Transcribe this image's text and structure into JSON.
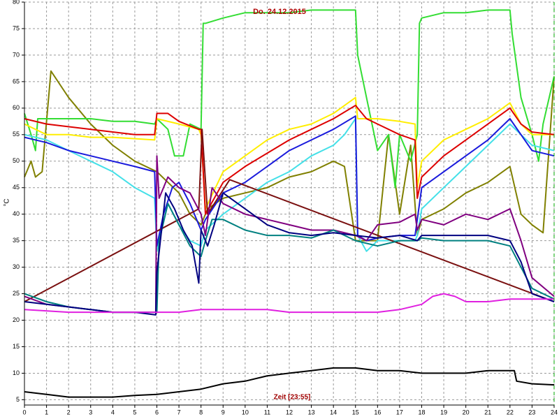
{
  "chart_data": {
    "type": "line",
    "title": "Do. 24.12.2015",
    "x_label": "Zeit [23:55]",
    "y_label": "°C",
    "xlim": [
      0,
      24
    ],
    "xticks": [
      0,
      1,
      2,
      3,
      4,
      5,
      6,
      7,
      8,
      9,
      10,
      11,
      12,
      13,
      14,
      15,
      16,
      17,
      18,
      19,
      20,
      21,
      22,
      23,
      24
    ],
    "ylim": [
      4,
      80
    ],
    "yticks": [
      5,
      10,
      15,
      20,
      25,
      30,
      35,
      40,
      45,
      50,
      55,
      60,
      65,
      70,
      75,
      80
    ],
    "grid": true,
    "series": [
      {
        "color": "#808000",
        "x": [
          0,
          0.3,
          0.5,
          0.8,
          1.2,
          2,
          3,
          4,
          5,
          6,
          6.5,
          7,
          7.5,
          8,
          8.3,
          9,
          10,
          11,
          12,
          13,
          14,
          14.5,
          15,
          16,
          16.5,
          17,
          17.5,
          17.8,
          18,
          19,
          20,
          21,
          22,
          22.5,
          23,
          23.5,
          24
        ],
        "values": [
          47,
          50,
          47,
          48,
          67,
          62,
          57,
          53,
          50,
          48,
          46,
          44,
          40,
          38,
          41,
          43,
          44,
          45,
          47,
          48,
          50,
          49,
          35,
          35,
          55,
          40,
          53,
          36,
          39,
          41,
          44,
          46,
          49,
          40,
          38,
          36.5,
          66
        ]
      },
      {
        "color": "#33dd33",
        "x": [
          0,
          0.3,
          0.5,
          0.6,
          1,
          2,
          3,
          4,
          5,
          5.9,
          6,
          6.5,
          6.8,
          7.2,
          7.5,
          8,
          8.1,
          8.2,
          9,
          10,
          11,
          12,
          13,
          14,
          15,
          15.1,
          15.5,
          16,
          16.5,
          16.8,
          17,
          17.5,
          17.8,
          17.9,
          18,
          19,
          20,
          21,
          22,
          22.1,
          22.5,
          23,
          23.3,
          23.5,
          24
        ],
        "values": [
          59,
          55,
          52,
          58,
          58,
          58,
          58,
          57.5,
          57.5,
          57,
          58,
          56,
          51,
          51,
          57,
          56,
          76,
          76,
          77,
          78,
          78,
          78,
          78.5,
          78.5,
          78.5,
          70,
          62,
          52,
          55,
          45,
          55,
          50,
          55,
          76,
          77,
          78,
          78,
          78.5,
          78.5,
          74,
          62,
          55,
          50,
          57,
          66
        ]
      },
      {
        "color": "#ffee00",
        "x": [
          0,
          1,
          2,
          3,
          4,
          5.9,
          6,
          7,
          7.9,
          8,
          8.2,
          9,
          10,
          11,
          12,
          13,
          14,
          15,
          15.1,
          16,
          17,
          17.7,
          17.8,
          18,
          19,
          20,
          21,
          22,
          22.5,
          23,
          24
        ],
        "values": [
          57,
          55,
          55,
          54.5,
          54.5,
          54,
          58,
          57,
          56,
          55,
          41,
          48,
          51,
          54,
          56,
          57,
          59,
          62,
          58,
          58,
          57.5,
          57,
          45,
          50,
          54,
          56,
          58,
          61,
          57,
          55,
          55
        ]
      },
      {
        "color": "#dd0000",
        "x": [
          0,
          1,
          3,
          5,
          5.9,
          6,
          6.5,
          7,
          7.9,
          8,
          8.2,
          9,
          10,
          11,
          12,
          13,
          14,
          15,
          15.5,
          16,
          17,
          17.7,
          17.8,
          18,
          19,
          20,
          21,
          22,
          22.5,
          23,
          24
        ],
        "values": [
          58,
          57,
          56,
          55,
          55,
          59,
          59,
          57.5,
          56,
          56,
          40,
          46,
          49,
          51.5,
          54,
          56,
          58,
          60.5,
          58,
          57,
          55,
          54,
          43,
          47,
          51,
          54,
          57,
          60,
          57,
          55.5,
          55
        ]
      },
      {
        "color": "#44e0e8",
        "x": [
          0,
          1,
          2,
          3,
          4,
          5,
          5.9,
          6,
          6.5,
          7,
          7.5,
          8,
          8.2,
          9,
          10,
          11,
          12,
          13,
          14,
          14.5,
          15,
          15.1,
          15.5,
          16,
          17,
          17.7,
          17.8,
          18,
          19,
          20,
          21,
          22,
          22.5,
          23,
          24
        ],
        "values": [
          55,
          54,
          52,
          50,
          48,
          45,
          43,
          33,
          42,
          38,
          35,
          34,
          37,
          40,
          43,
          46,
          48,
          51,
          53,
          55,
          58,
          36,
          33,
          35,
          35,
          35,
          36,
          41,
          45,
          49,
          53,
          57,
          55,
          53,
          52
        ]
      },
      {
        "color": "#1a1adc",
        "x": [
          0,
          1,
          2,
          3,
          4,
          5,
          5.9,
          6,
          6.3,
          6.7,
          7,
          7.5,
          8,
          8.2,
          9,
          10,
          11,
          12,
          13,
          14,
          15,
          15.1,
          15.5,
          16,
          17,
          17.7,
          17.8,
          18,
          19,
          20,
          21,
          22,
          22.5,
          23,
          24
        ],
        "values": [
          54.5,
          53.5,
          52,
          51,
          50,
          49,
          48,
          34,
          40,
          45,
          46,
          42,
          37,
          39,
          44,
          46,
          49,
          52,
          54,
          56,
          58.5,
          36,
          35,
          35.5,
          36,
          36,
          39,
          45,
          48,
          51,
          54,
          58,
          55,
          52,
          51
        ]
      },
      {
        "color": "#7a1010",
        "x": [
          0,
          7.9,
          8.05,
          8.3,
          9.3,
          24
        ],
        "values": [
          23.5,
          41,
          56,
          40,
          46.5,
          23.5
        ]
      },
      {
        "color": "#800080",
        "x": [
          0,
          1,
          2,
          3,
          4,
          5,
          5.95,
          6,
          6.1,
          6.5,
          7,
          7.5,
          8,
          8.2,
          8.5,
          9,
          10,
          11,
          12,
          13,
          14,
          15,
          15.5,
          16,
          17,
          17.7,
          17.8,
          18,
          19,
          20,
          21,
          22,
          22.5,
          23,
          24
        ],
        "values": [
          24.5,
          23,
          22.5,
          22,
          21.5,
          21.5,
          21.5,
          51,
          43,
          47,
          45,
          44,
          40,
          36,
          45,
          42,
          40,
          39,
          38,
          37,
          37,
          36,
          35,
          38,
          38.5,
          40,
          37,
          39,
          38,
          40,
          39,
          41,
          35,
          28,
          24.5
        ]
      },
      {
        "color": "#008080",
        "x": [
          0,
          1,
          2,
          3,
          4,
          5,
          6,
          6.1,
          6.5,
          7,
          7.5,
          8,
          8.2,
          8.5,
          9,
          10,
          11,
          12,
          13,
          14,
          15,
          16,
          17,
          17.5,
          17.8,
          18,
          19,
          20,
          21,
          22,
          22.5,
          23,
          24
        ],
        "values": [
          25,
          23.5,
          22.5,
          22,
          21.5,
          21.5,
          21.5,
          35,
          42,
          38,
          34,
          32,
          35,
          39,
          39,
          37,
          36,
          36,
          35.5,
          37,
          35,
          34,
          35,
          35,
          35,
          35.5,
          35,
          35,
          35,
          34,
          30,
          26,
          24
        ]
      },
      {
        "color": "#000080",
        "x": [
          0,
          1,
          2,
          3,
          4,
          5,
          5.95,
          6,
          6.4,
          6.8,
          7.2,
          7.6,
          7.9,
          8,
          8.3,
          8.6,
          9,
          10,
          11,
          12,
          13,
          14,
          15,
          16,
          17,
          17.8,
          18,
          19,
          20,
          21,
          22,
          22.5,
          23,
          24
        ],
        "values": [
          23.5,
          23,
          22.5,
          22,
          21.5,
          21.5,
          21,
          29,
          44,
          41,
          37,
          34,
          27,
          37,
          34,
          38,
          44,
          41,
          38,
          36.5,
          36,
          36.5,
          36,
          35.5,
          36,
          35,
          36,
          36,
          36,
          36,
          35,
          31,
          25,
          23.5
        ]
      },
      {
        "color": "#e020e0",
        "x": [
          0,
          2,
          5,
          7,
          8,
          9,
          10,
          11,
          12,
          13,
          14,
          15,
          16,
          17,
          18,
          18.5,
          19,
          19.5,
          20,
          21,
          22,
          23,
          24
        ],
        "values": [
          22,
          21.5,
          21.5,
          21.5,
          22,
          22,
          22,
          22,
          21.5,
          21.5,
          21.5,
          21.5,
          21.5,
          22,
          23,
          24.5,
          25,
          24.5,
          23.5,
          23.5,
          24,
          24,
          24
        ]
      },
      {
        "color": "#000000",
        "x": [
          0,
          1,
          2,
          3,
          4,
          5,
          6,
          7,
          8,
          9,
          10,
          11,
          12,
          13,
          14,
          15,
          16,
          17,
          18,
          19,
          20,
          21,
          22,
          22.2,
          22.3,
          23,
          24
        ],
        "values": [
          6.5,
          6,
          5.5,
          5.5,
          5.5,
          5.8,
          6,
          6.5,
          7,
          8,
          8.5,
          9.5,
          10,
          10.5,
          11,
          11,
          10.5,
          10.5,
          10,
          10,
          10,
          10.5,
          10.5,
          10.5,
          8.5,
          8,
          7.8
        ]
      }
    ]
  }
}
